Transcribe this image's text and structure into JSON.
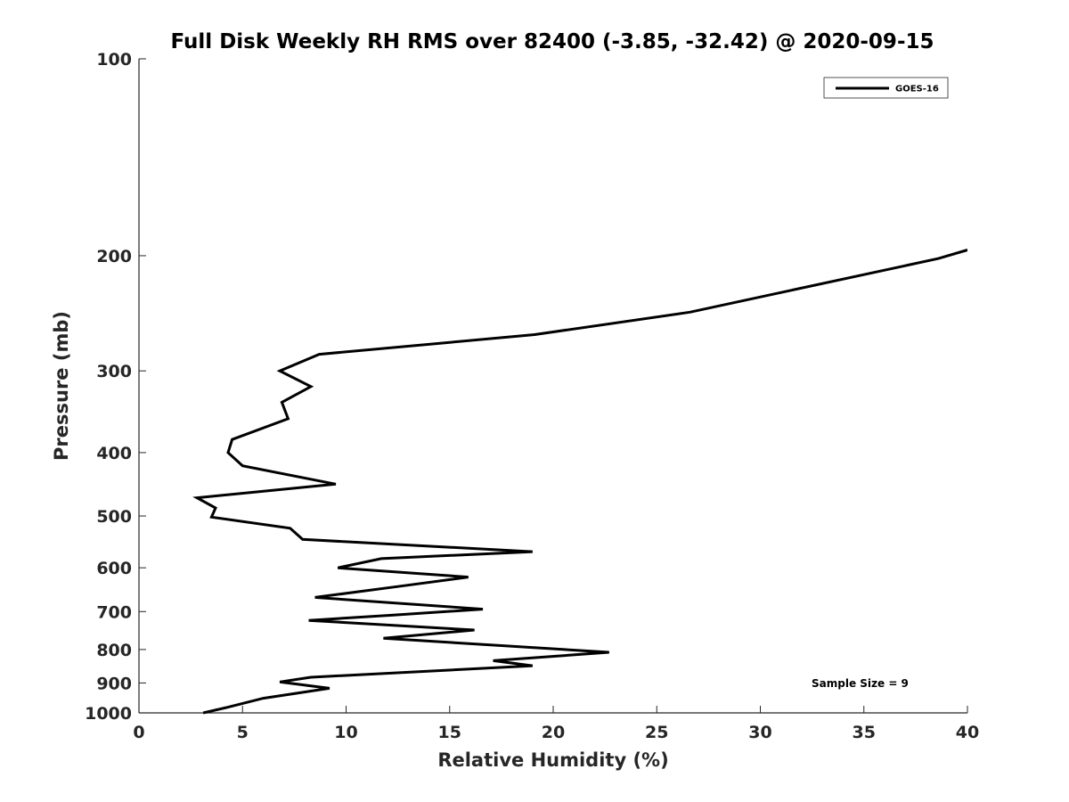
{
  "chart_data": {
    "type": "line",
    "title": "Full Disk Weekly RH RMS over 82400 (-3.85, -32.42) @ 2020-09-15",
    "xlabel": "Relative Humidity (%)",
    "ylabel": "Pressure (mb)",
    "xlim": [
      0,
      40
    ],
    "ylim": [
      100,
      1000
    ],
    "y_scale": "log",
    "y_reversed": true,
    "x_ticks": [
      0,
      5,
      10,
      15,
      20,
      25,
      30,
      35,
      40
    ],
    "y_ticks": [
      100,
      200,
      300,
      400,
      500,
      600,
      700,
      800,
      900,
      1000
    ],
    "grid": false,
    "legend_position": "top-right",
    "annotation": "Sample Size = 9",
    "series": [
      {
        "name": "GOES-16",
        "color": "#000000",
        "points": [
          [
            40.0,
            196
          ],
          [
            38.6,
            202
          ],
          [
            26.6,
            244
          ],
          [
            19.1,
            264
          ],
          [
            8.7,
            283
          ],
          [
            6.8,
            300
          ],
          [
            8.3,
            317
          ],
          [
            6.9,
            335
          ],
          [
            7.2,
            355
          ],
          [
            4.5,
            382
          ],
          [
            4.3,
            400
          ],
          [
            5.0,
            419
          ],
          [
            9.5,
            447
          ],
          [
            2.8,
            469
          ],
          [
            3.7,
            486
          ],
          [
            3.5,
            502
          ],
          [
            7.3,
            522
          ],
          [
            7.9,
            543
          ],
          [
            19.0,
            567
          ],
          [
            11.7,
            581
          ],
          [
            9.6,
            600
          ],
          [
            15.9,
            620
          ],
          [
            12.5,
            641
          ],
          [
            8.5,
            666
          ],
          [
            16.6,
            694
          ],
          [
            12.2,
            709
          ],
          [
            8.2,
            722
          ],
          [
            16.2,
            747
          ],
          [
            11.8,
            769
          ],
          [
            22.7,
            808
          ],
          [
            17.1,
            832
          ],
          [
            19.0,
            847
          ],
          [
            8.3,
            882
          ],
          [
            6.8,
            897
          ],
          [
            9.2,
            917
          ],
          [
            6.0,
            950
          ],
          [
            4.3,
            980
          ],
          [
            3.1,
            1000
          ]
        ]
      }
    ]
  }
}
